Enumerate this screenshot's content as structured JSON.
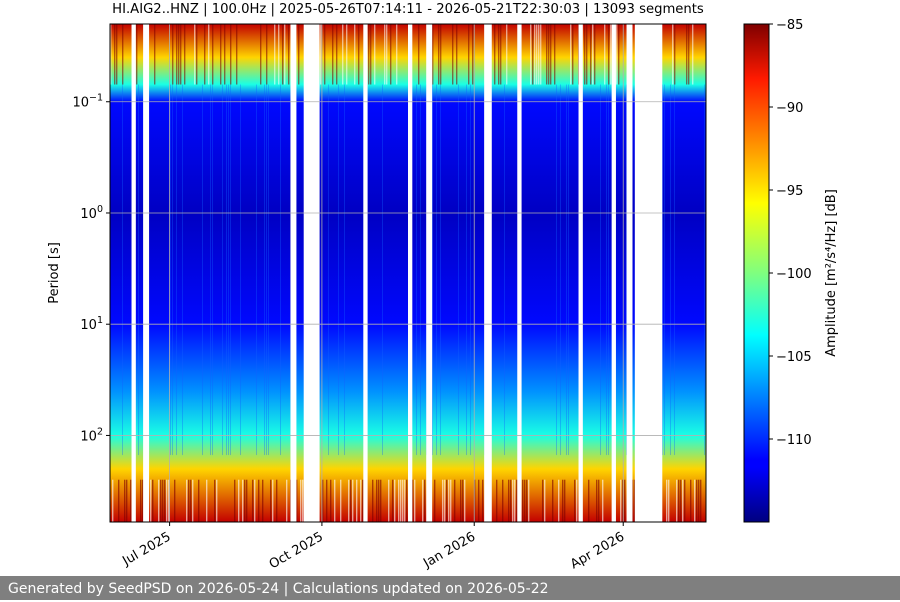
{
  "title": "HI.AIG2..HNZ | 100.0Hz | 2025-05-26T07:14:11 - 2026-05-21T22:30:03 | 13093 segments",
  "footer": "Generated by SeedPSD on 2026-05-24 | Calculations updated on 2026-05-22",
  "chart_data": {
    "type": "heatmap",
    "title": "HI.AIG2..HNZ | 100.0Hz | 2025-05-26T07:14:11 - 2026-05-21T22:30:03 | 13093 segments",
    "xlabel": "",
    "ylabel": "Period [s]",
    "x_range": [
      "2025-05-26",
      "2026-05-21"
    ],
    "x_ticks": [
      {
        "date": "2025-07-01",
        "label": "Jul 2025"
      },
      {
        "date": "2025-10-01",
        "label": "Oct 2025"
      },
      {
        "date": "2026-01-01",
        "label": "Jan 2026"
      },
      {
        "date": "2026-04-01",
        "label": "Apr 2026"
      }
    ],
    "y_scale": "log",
    "y_inverted": true,
    "y_range": [
      0.02,
      600
    ],
    "y_ticks": [
      {
        "value": 0.1,
        "base": "10",
        "exp": "−1"
      },
      {
        "value": 1,
        "base": "10",
        "exp": "0"
      },
      {
        "value": 10,
        "base": "10",
        "exp": "1"
      },
      {
        "value": 100,
        "base": "10",
        "exp": "2"
      }
    ],
    "grid": true,
    "colorbar": {
      "label": "Amplitude [m²/s⁴/Hz] [dB]",
      "range": [
        -115,
        -85
      ],
      "ticks": [
        "−85",
        "−90",
        "−95",
        "−100",
        "−105",
        "−110"
      ],
      "tick_values": [
        -85,
        -90,
        -95,
        -100,
        -105,
        -110
      ],
      "colormap": "jet"
    },
    "data_gaps": [
      [
        "2025-06-08",
        "2025-06-10"
      ],
      [
        "2025-06-15",
        "2025-06-18"
      ],
      [
        "2025-09-12",
        "2025-09-15"
      ],
      [
        "2025-09-20",
        "2025-09-29"
      ],
      [
        "2025-10-26",
        "2025-10-28"
      ],
      [
        "2025-11-22",
        "2025-11-24"
      ],
      [
        "2025-12-03",
        "2025-12-06"
      ],
      [
        "2026-01-07",
        "2026-01-11"
      ],
      [
        "2026-01-27",
        "2026-01-29"
      ],
      [
        "2026-03-05",
        "2026-03-07"
      ],
      [
        "2026-03-25",
        "2026-03-27"
      ],
      [
        "2026-04-03",
        "2026-04-06"
      ],
      [
        "2026-04-08",
        "2026-04-24"
      ]
    ],
    "amplitude_profile": [
      {
        "period": 0.02,
        "db": -87
      },
      {
        "period": 0.04,
        "db": -95
      },
      {
        "period": 0.07,
        "db": -103
      },
      {
        "period": 0.1,
        "db": -111
      },
      {
        "period": 1,
        "db": -113
      },
      {
        "period": 10,
        "db": -111
      },
      {
        "period": 40,
        "db": -107
      },
      {
        "period": 100,
        "db": -103
      },
      {
        "period": 200,
        "db": -95
      },
      {
        "period": 600,
        "db": -87
      }
    ]
  }
}
